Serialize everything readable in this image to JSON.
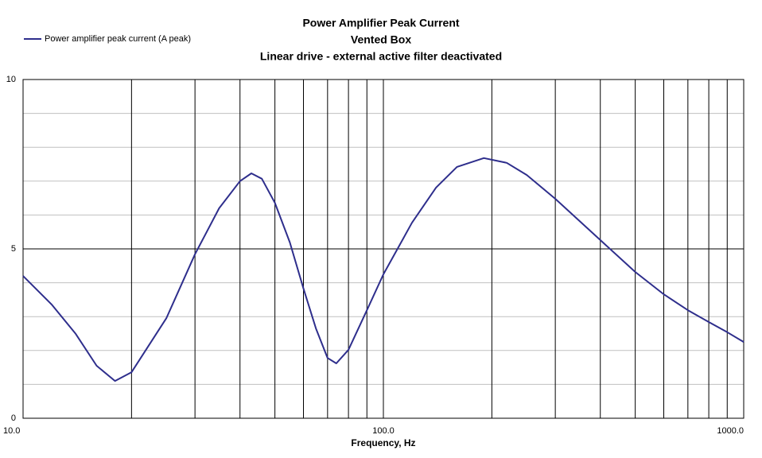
{
  "chart_data": {
    "type": "line",
    "title": "Power Amplifier Peak Current",
    "subtitle": [
      "Vented Box",
      "Linear drive - external active filter deactivated"
    ],
    "x_label": "Frequency, Hz",
    "x_scale": "log",
    "xlim": [
      10,
      1000
    ],
    "xticks": [
      {
        "value": 10,
        "label": "10.0"
      },
      {
        "value": 100,
        "label": "100.0"
      },
      {
        "value": 1000,
        "label": "1000.0"
      }
    ],
    "x_gridlines": [
      20,
      30,
      40,
      50,
      60,
      70,
      80,
      90,
      200,
      300,
      400,
      500,
      600,
      700,
      800,
      900
    ],
    "ylim": [
      0,
      10
    ],
    "yticks": [
      0,
      5,
      10
    ],
    "y_minor_gridlines": [
      1,
      2,
      3,
      4,
      6,
      7,
      8,
      9
    ],
    "legend": "top-left",
    "x": [
      10,
      12,
      14,
      16,
      18,
      20,
      25,
      30,
      35,
      40,
      43,
      46,
      50,
      55,
      60,
      65,
      70,
      74,
      80,
      90,
      100,
      120,
      140,
      160,
      190,
      220,
      250,
      300,
      400,
      500,
      600,
      700,
      800,
      900,
      1000
    ],
    "series": [
      {
        "name": "Power amplifier peak current (A peak)",
        "color": "#2e2e8c",
        "values": [
          4.2,
          3.36,
          2.49,
          1.55,
          1.1,
          1.36,
          2.96,
          4.84,
          6.2,
          7.0,
          7.23,
          7.07,
          6.36,
          5.19,
          3.83,
          2.65,
          1.78,
          1.62,
          2.02,
          3.19,
          4.25,
          5.77,
          6.81,
          7.42,
          7.68,
          7.54,
          7.18,
          6.48,
          5.26,
          4.32,
          3.66,
          3.19,
          2.84,
          2.54,
          2.25
        ]
      }
    ]
  }
}
